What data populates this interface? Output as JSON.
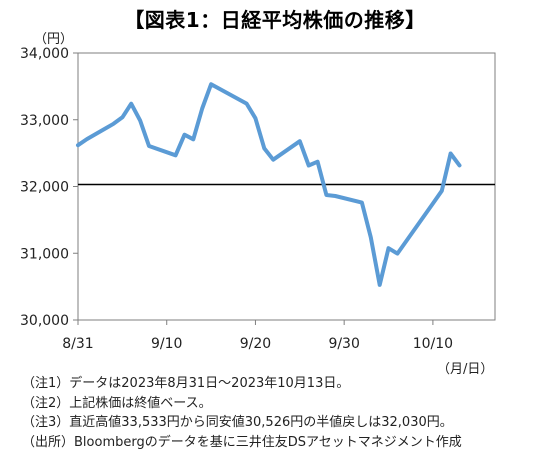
{
  "chart_data": {
    "type": "line",
    "title": "【図表1：日経平均株価の推移】",
    "y_unit": "（円）",
    "x_unit": "（月/日）",
    "ylim": [
      30000,
      34000
    ],
    "y_ticks": [
      "30,000",
      "31,000",
      "32,000",
      "33,000",
      "34,000"
    ],
    "y_tick_values": [
      30000,
      31000,
      32000,
      33000,
      34000
    ],
    "x_tick_labels": [
      "8/31",
      "9/10",
      "9/20",
      "9/30",
      "10/10"
    ],
    "x_tick_days": [
      0,
      10,
      20,
      30,
      40
    ],
    "x_range_days": [
      0,
      47
    ],
    "reference_line": {
      "value": 32030
    },
    "series": [
      {
        "color": "#5b9bd5",
        "points": [
          {
            "date": "8/31",
            "value": 32619
          },
          {
            "date": "9/1",
            "value": 32710
          },
          {
            "date": "9/4",
            "value": 32939
          },
          {
            "date": "9/5",
            "value": 33036
          },
          {
            "date": "9/6",
            "value": 33241
          },
          {
            "date": "9/7",
            "value": 32991
          },
          {
            "date": "9/8",
            "value": 32606
          },
          {
            "date": "9/11",
            "value": 32467
          },
          {
            "date": "9/12",
            "value": 32776
          },
          {
            "date": "9/13",
            "value": 32707
          },
          {
            "date": "9/14",
            "value": 33168
          },
          {
            "date": "9/15",
            "value": 33533
          },
          {
            "date": "9/19",
            "value": 33242
          },
          {
            "date": "9/20",
            "value": 33023
          },
          {
            "date": "9/21",
            "value": 32571
          },
          {
            "date": "9/22",
            "value": 32402
          },
          {
            "date": "9/25",
            "value": 32678
          },
          {
            "date": "9/26",
            "value": 32315
          },
          {
            "date": "9/27",
            "value": 32372
          },
          {
            "date": "9/28",
            "value": 31872
          },
          {
            "date": "9/29",
            "value": 31857
          },
          {
            "date": "10/2",
            "value": 31759
          },
          {
            "date": "10/3",
            "value": 31238
          },
          {
            "date": "10/4",
            "value": 30526
          },
          {
            "date": "10/5",
            "value": 31075
          },
          {
            "date": "10/6",
            "value": 30995
          },
          {
            "date": "10/10",
            "value": 31746
          },
          {
            "date": "10/11",
            "value": 31936
          },
          {
            "date": "10/12",
            "value": 32494
          },
          {
            "date": "10/13",
            "value": 32316
          }
        ]
      }
    ],
    "grid": false
  },
  "notes": [
    "（注1）データは2023年8月31日～2023年10月13日。",
    "（注2）上記株価は終値ベース。",
    "（注3）直近高値33,533円から同安値30,526円の半値戻しは32,030円。",
    "（出所）Bloombergのデータを基に三井住友DSアセットマネジメント作成"
  ]
}
